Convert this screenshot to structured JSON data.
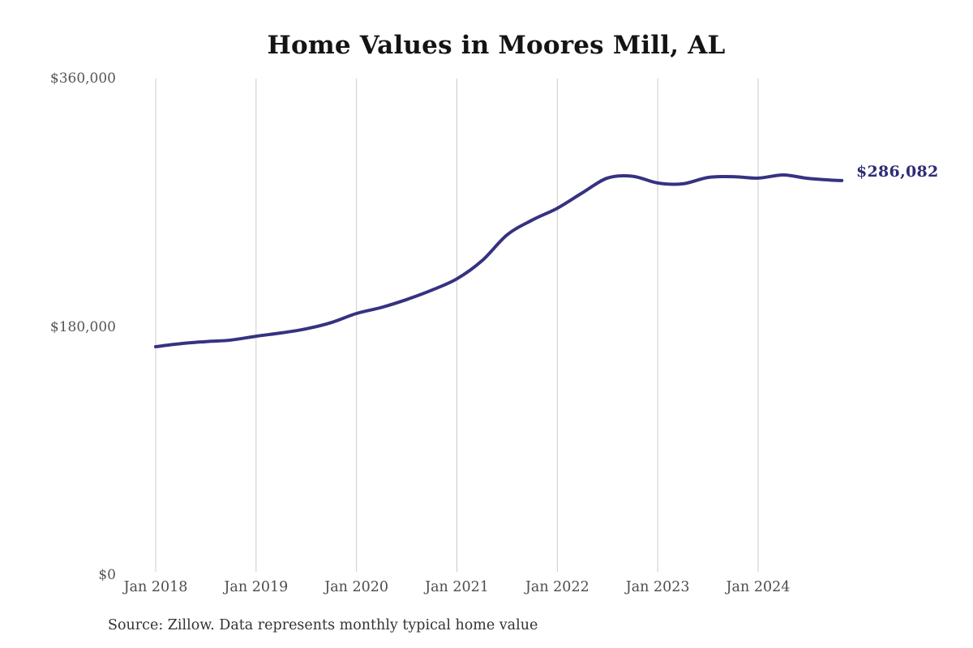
{
  "chart_data": {
    "type": "line",
    "title": "Home Values in Moores Mill, AL",
    "xlabel": "",
    "ylabel": "",
    "ylim": [
      0,
      360000
    ],
    "xlim_years": [
      2018.0,
      2024.95
    ],
    "grid": "vertical-only",
    "legend": "none",
    "source_note": "Source: Zillow. Data represents monthly typical home value",
    "end_label": "$286,082",
    "end_value": 286082,
    "y_ticks": [
      {
        "label": "$0",
        "value": 0
      },
      {
        "label": "$180,000",
        "value": 180000
      },
      {
        "label": "$360,000",
        "value": 360000
      }
    ],
    "x_ticks": [
      {
        "label": "Jan 2018",
        "year": 2018
      },
      {
        "label": "Jan 2019",
        "year": 2019
      },
      {
        "label": "Jan 2020",
        "year": 2020
      },
      {
        "label": "Jan 2021",
        "year": 2021
      },
      {
        "label": "Jan 2022",
        "year": 2022
      },
      {
        "label": "Jan 2023",
        "year": 2023
      },
      {
        "label": "Jan 2024",
        "year": 2024
      }
    ],
    "series": [
      {
        "name": "Monthly typical home value",
        "points": [
          {
            "date": "2018-01",
            "value": 165600
          },
          {
            "date": "2018-04",
            "value": 167800
          },
          {
            "date": "2018-07",
            "value": 169300
          },
          {
            "date": "2018-10",
            "value": 170400
          },
          {
            "date": "2019-01",
            "value": 173200
          },
          {
            "date": "2019-04",
            "value": 175600
          },
          {
            "date": "2019-07",
            "value": 178600
          },
          {
            "date": "2019-10",
            "value": 183100
          },
          {
            "date": "2020-01",
            "value": 189700
          },
          {
            "date": "2020-04",
            "value": 194100
          },
          {
            "date": "2020-07",
            "value": 199800
          },
          {
            "date": "2020-10",
            "value": 206600
          },
          {
            "date": "2021-01",
            "value": 214800
          },
          {
            "date": "2021-04",
            "value": 227900
          },
          {
            "date": "2021-07",
            "value": 246700
          },
          {
            "date": "2021-10",
            "value": 257400
          },
          {
            "date": "2022-01",
            "value": 266000
          },
          {
            "date": "2022-04",
            "value": 277200
          },
          {
            "date": "2022-07",
            "value": 287900
          },
          {
            "date": "2022-10",
            "value": 289200
          },
          {
            "date": "2023-01",
            "value": 284300
          },
          {
            "date": "2023-04",
            "value": 283700
          },
          {
            "date": "2023-07",
            "value": 288300
          },
          {
            "date": "2023-10",
            "value": 288900
          },
          {
            "date": "2024-01",
            "value": 287800
          },
          {
            "date": "2024-04",
            "value": 290100
          },
          {
            "date": "2024-07",
            "value": 287600
          },
          {
            "date": "2024-10",
            "value": 286300
          },
          {
            "date": "2024-11",
            "value": 286082
          }
        ]
      }
    ],
    "colors": {
      "line": "#363281",
      "end_label": "#2f2c74",
      "gridline": "#cccccc",
      "y_tick_label": "#555555",
      "x_tick_label": "#4d4d4d",
      "title": "#141414",
      "source": "#333333"
    }
  }
}
